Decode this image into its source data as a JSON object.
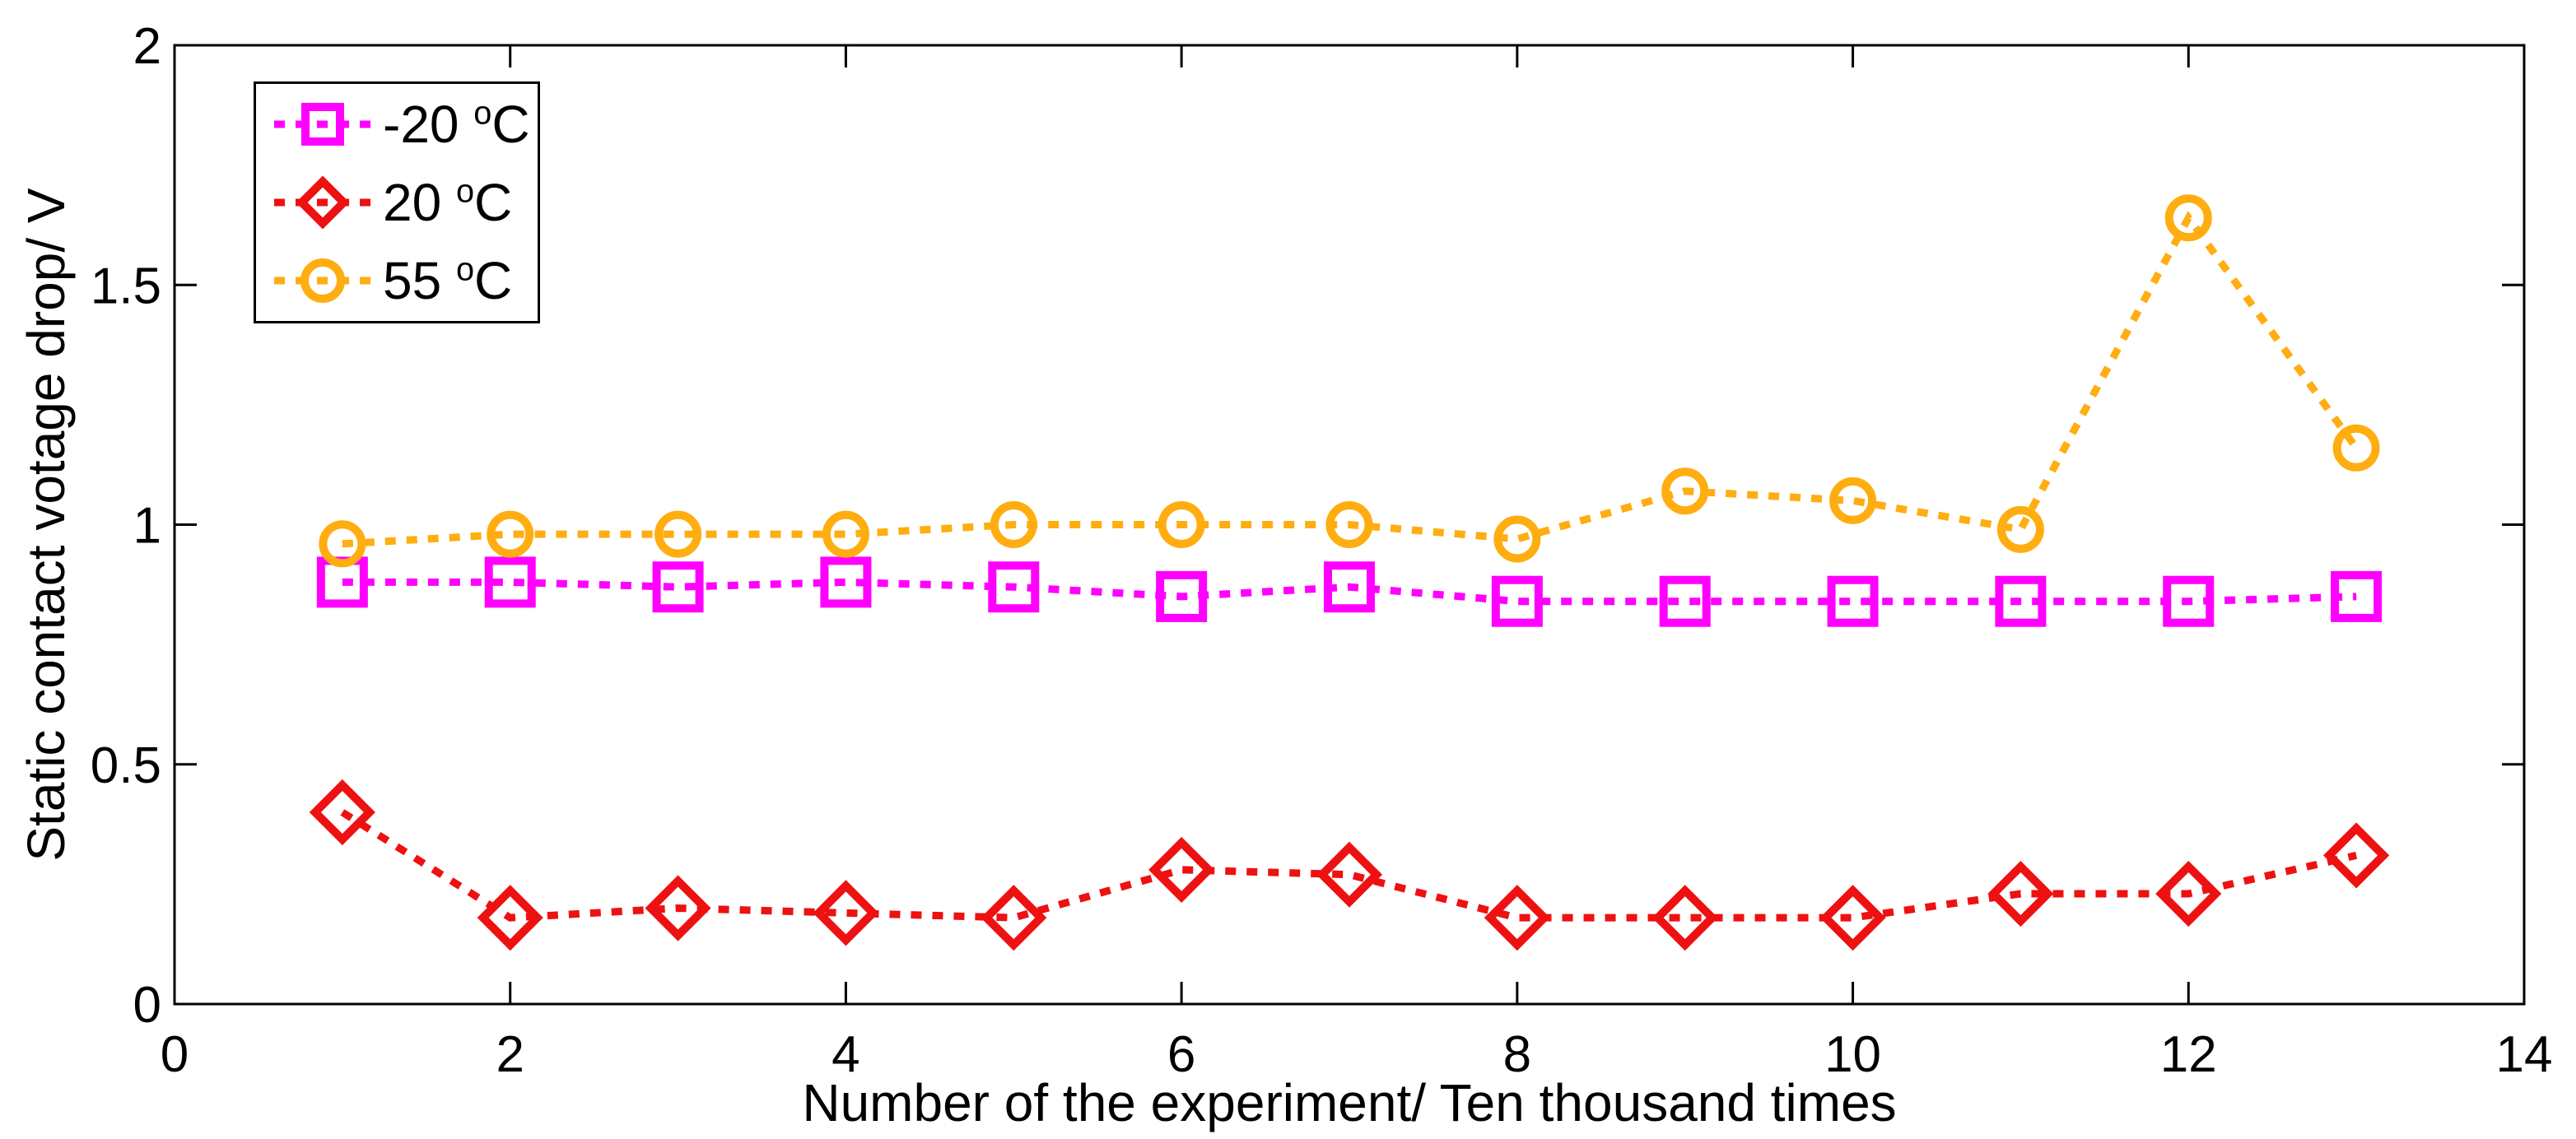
{
  "figure": {
    "background": "#FFFFFF",
    "frame_color": "#000000"
  },
  "chart_data": {
    "type": "line",
    "title": "",
    "xlabel": "Number of the experiment/ Ten thousand times",
    "ylabel": "Static contact votage drop/ V",
    "xlim": [
      0,
      14
    ],
    "ylim": [
      0,
      2
    ],
    "xticks": [
      0,
      2,
      4,
      6,
      8,
      10,
      12,
      14
    ],
    "xtick_labels": [
      "0",
      "2",
      "4",
      "6",
      "8",
      "10",
      "12",
      "14"
    ],
    "yticks": [
      0,
      0.5,
      1,
      1.5,
      2
    ],
    "ytick_labels": [
      "0",
      "0.5",
      "1",
      "1.5",
      "2"
    ],
    "grid": false,
    "line_style": "dotted",
    "legend_position": "top-left",
    "x": [
      1,
      2,
      3,
      4,
      5,
      6,
      7,
      8,
      9,
      10,
      11,
      12,
      13
    ],
    "series": [
      {
        "name": "-20 °C",
        "marker": "square",
        "color": "#FF00FF",
        "values": [
          0.88,
          0.88,
          0.87,
          0.88,
          0.87,
          0.85,
          0.87,
          0.84,
          0.84,
          0.84,
          0.84,
          0.84,
          0.85
        ]
      },
      {
        "name": "20 °C",
        "marker": "diamond",
        "color": "#EE1111",
        "values": [
          0.4,
          0.18,
          0.2,
          0.19,
          0.18,
          0.28,
          0.27,
          0.18,
          0.18,
          0.18,
          0.23,
          0.23,
          0.31
        ]
      },
      {
        "name": "55 °C",
        "marker": "circle",
        "color": "#FFAD11",
        "values": [
          0.96,
          0.98,
          0.98,
          0.98,
          1.0,
          1.0,
          1.0,
          0.97,
          1.07,
          1.05,
          0.99,
          1.64,
          1.16
        ]
      }
    ]
  },
  "legend": {
    "items": [
      {
        "num": "-20 ",
        "degree": "o",
        "unit": "C",
        "color": "#FF00FF",
        "marker": "square"
      },
      {
        "num": "20 ",
        "degree": "o",
        "unit": "C",
        "color": "#EE1111",
        "marker": "diamond"
      },
      {
        "num": "55 ",
        "degree": "o",
        "unit": "C",
        "color": "#FFAD11",
        "marker": "circle"
      }
    ]
  }
}
